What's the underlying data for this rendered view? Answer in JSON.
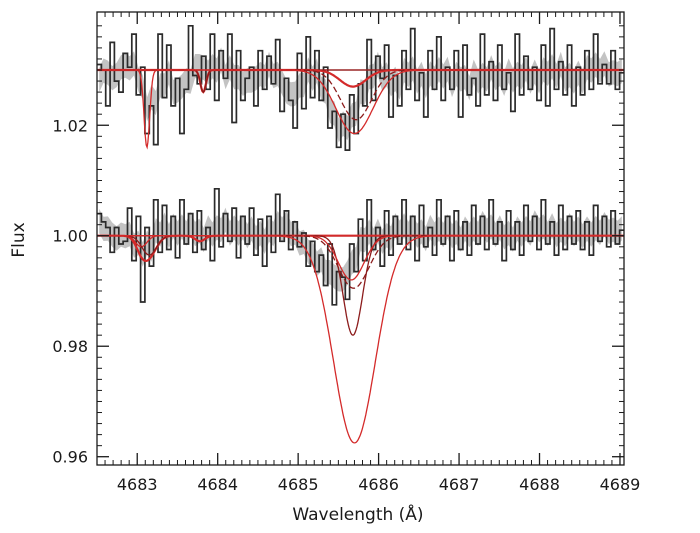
{
  "chart_data": {
    "type": "line",
    "title": "",
    "xlabel": "Wavelength (Å)",
    "ylabel": "Flux",
    "xlim": [
      4682.5,
      4689.05
    ],
    "ylim": [
      0.9585,
      1.0405
    ],
    "xticks": [
      4683,
      4684,
      4685,
      4686,
      4687,
      4688,
      4689
    ],
    "xtick_labels": [
      "4683",
      "4684",
      "4685",
      "4686",
      "4687",
      "4688",
      "4689"
    ],
    "yticks": [
      0.96,
      0.98,
      1.0,
      1.02
    ],
    "ytick_labels": [
      "0.96",
      "0.98",
      "1.00",
      "1.02"
    ],
    "grid": false,
    "legend": "none",
    "line_styles": {
      "observed": "histogram",
      "uncertainty": "shaded band",
      "models": "solid and dashed curves"
    },
    "colors": {
      "observed": "#2b2b2b",
      "uncertainty_band": "#bdbdbd",
      "model": "#d42a2a",
      "model_dark": "#8c1c1c",
      "axes": "#1a1a1a"
    },
    "spectra": [
      {
        "offset": 1.03,
        "features": [
          {
            "center": 4683.12,
            "width": 0.035,
            "depth": 0.014
          },
          {
            "center": 4683.82,
            "width": 0.035,
            "depth": 0.004
          },
          {
            "center": 4685.68,
            "width": 0.16,
            "depth": 0.003
          },
          {
            "center": 4685.72,
            "width": 0.19,
            "depth": 0.009
          },
          {
            "center": 4685.7,
            "width": 0.23,
            "depth": 0.0115
          }
        ],
        "observed_flux": [
          1.031,
          1.03,
          1.0235,
          1.035,
          1.028,
          1.026,
          1.033,
          1.0305,
          1.0365,
          1.0255,
          1.0305,
          1.0185,
          1.0235,
          1.0165,
          1.0365,
          1.025,
          1.0345,
          1.0235,
          1.0285,
          1.0185,
          1.0265,
          1.038,
          1.029,
          1.0275,
          1.0325,
          1.0265,
          1.0365,
          1.0245,
          1.0335,
          1.0285,
          1.0365,
          1.0205,
          1.0335,
          1.0245,
          1.0285,
          1.0305,
          1.0235,
          1.0335,
          1.0265,
          1.0325,
          1.0275,
          1.0355,
          1.0225,
          1.0285,
          1.0245,
          1.0195,
          1.033,
          1.023,
          1.036,
          1.025,
          1.0335,
          1.0245,
          1.0305,
          1.0195,
          1.0225,
          1.016,
          1.022,
          1.0155,
          1.0255,
          1.0185,
          1.0275,
          1.0235,
          1.0355,
          1.0245,
          1.0325,
          1.0285,
          1.0345,
          1.0215,
          1.029,
          1.0235,
          1.0335,
          1.0265,
          1.0375,
          1.0245,
          1.0295,
          1.0215,
          1.0335,
          1.0265,
          1.036,
          1.0245,
          1.0305,
          1.0265,
          1.0335,
          1.0215,
          1.0345,
          1.0255,
          1.0285,
          1.0235,
          1.0365,
          1.0255,
          1.0315,
          1.0245,
          1.0345,
          1.0265,
          1.0295,
          1.0225,
          1.0365,
          1.0255,
          1.0325,
          1.0265,
          1.0305,
          1.0245,
          1.0345,
          1.0235,
          1.0375,
          1.0265,
          1.0315,
          1.0255,
          1.0345,
          1.0235,
          1.0305,
          1.0255,
          1.0335,
          1.0265,
          1.0365,
          1.0275,
          1.031,
          1.0275,
          1.0335,
          1.0265,
          1.0295
        ]
      },
      {
        "offset": 1.0,
        "features": [
          {
            "center": 4683.05,
            "width": 0.07,
            "depth": 0.002
          },
          {
            "center": 4683.15,
            "width": 0.09,
            "depth": 0.0035
          },
          {
            "center": 4683.78,
            "width": 0.06,
            "depth": 0.001
          },
          {
            "center": 4685.68,
            "width": 0.12,
            "depth": 0.018
          },
          {
            "center": 4685.66,
            "width": 0.16,
            "depth": 0.008
          },
          {
            "center": 4685.69,
            "width": 0.19,
            "depth": 0.0095
          },
          {
            "center": 4685.7,
            "width": 0.26,
            "depth": 0.0375
          }
        ],
        "observed_flux": [
          1.004,
          1.0025,
          1.0015,
          0.997,
          1.0015,
          0.9985,
          0.999,
          1.005,
          0.9955,
          1.0035,
          0.988,
          1.0015,
          0.9945,
          1.0065,
          0.997,
          1.0055,
          0.9975,
          1.0035,
          0.996,
          1.0065,
          0.9985,
          1.004,
          0.997,
          1.0045,
          0.9975,
          1.0015,
          0.9955,
          1.0085,
          0.998,
          1.004,
          0.999,
          1.005,
          0.996,
          1.0035,
          0.9985,
          1.005,
          0.9965,
          1.003,
          0.9945,
          1.0035,
          0.997,
          1.0075,
          0.999,
          1.0045,
          0.9975,
          1.0025,
          0.998,
          1.0005,
          0.9945,
          0.999,
          0.9935,
          0.9965,
          0.991,
          0.9985,
          0.9875,
          0.9935,
          0.9925,
          0.9885,
          0.9985,
          0.9935,
          1.003,
          0.9955,
          1.0065,
          0.9975,
          1.0015,
          0.9945,
          1.0045,
          0.9965,
          1.0035,
          0.9985,
          1.0065,
          0.9975,
          1.0035,
          0.9955,
          1.0055,
          0.998,
          1.0015,
          0.9965,
          1.0065,
          0.9985,
          1.0035,
          0.9955,
          1.0045,
          0.9975,
          1.0025,
          0.9965,
          1.0055,
          0.9985,
          1.0035,
          0.9975,
          1.0065,
          0.9985,
          1.0025,
          0.9955,
          1.0045,
          0.9975,
          1.0025,
          0.9965,
          1.0055,
          0.999,
          1.0035,
          0.9975,
          1.0065,
          0.9985,
          1.0025,
          0.9965,
          1.0055,
          0.9975,
          1.0035,
          0.9985,
          1.0045,
          0.9975,
          1.0025,
          0.9965,
          1.0055,
          0.999,
          1.0035,
          0.998,
          1.0045,
          0.9985,
          1.001
        ]
      }
    ]
  }
}
